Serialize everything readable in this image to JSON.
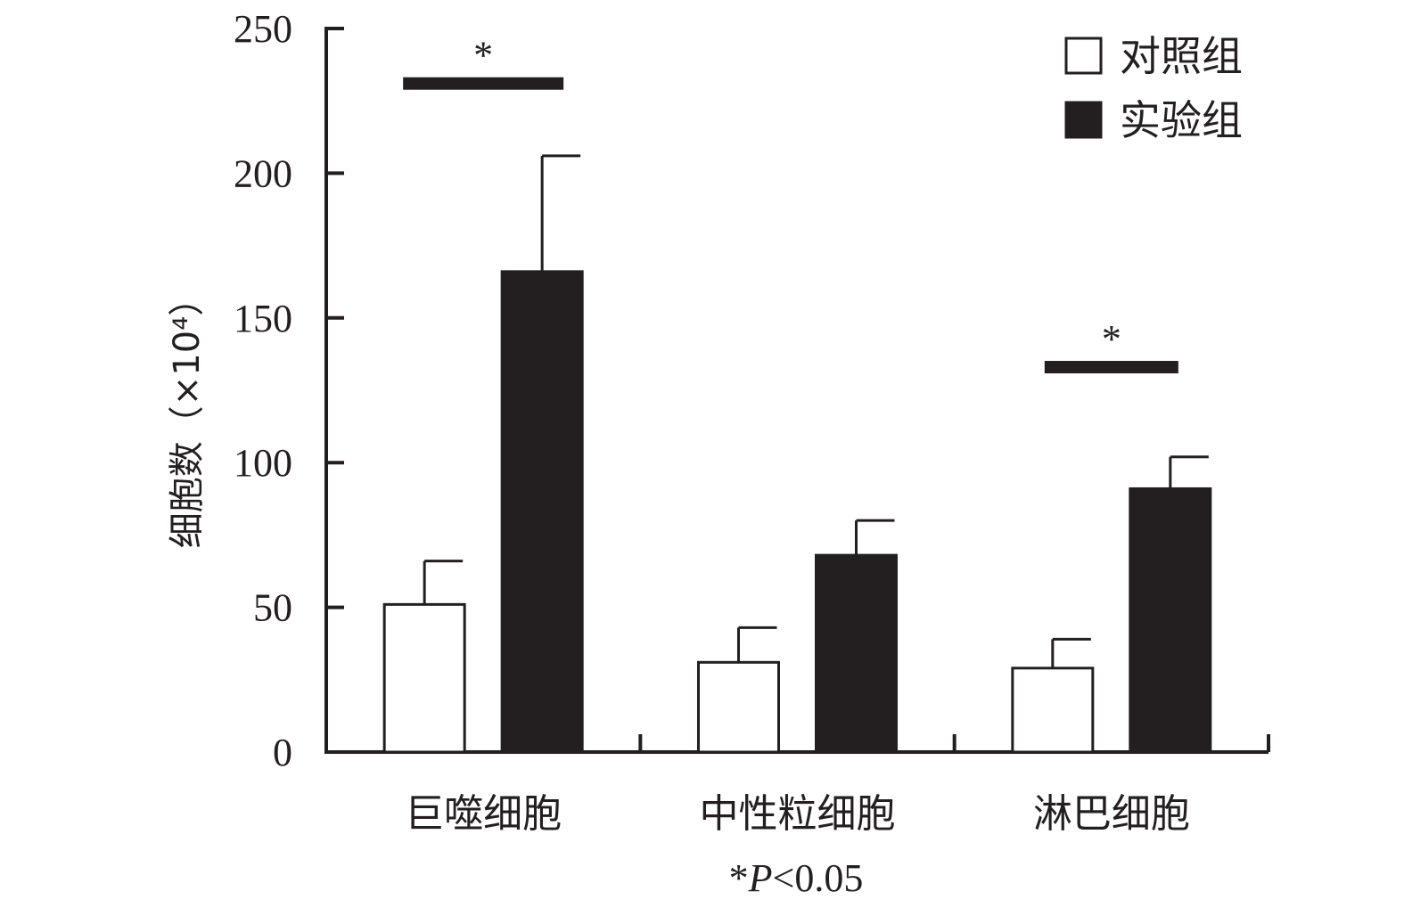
{
  "chart_data": {
    "type": "bar",
    "categories": [
      "巨噬细胞",
      "中性粒细胞",
      "淋巴细胞"
    ],
    "series": [
      {
        "name": "对照组",
        "values": [
          51,
          31,
          29
        ],
        "errors": [
          15,
          12,
          10
        ],
        "fill": "#ffffff",
        "stroke": "#231f20"
      },
      {
        "name": "实验组",
        "values": [
          166,
          68,
          91
        ],
        "errors": [
          40,
          12,
          11
        ],
        "fill": "#231f20",
        "stroke": "#231f20"
      }
    ],
    "ylabel": "细胞数（×10⁴）",
    "ylim": [
      0,
      250
    ],
    "yticks": [
      "0",
      "50",
      "100",
      "150",
      "200",
      "250"
    ],
    "legend_position": "top-right",
    "significance": [
      {
        "category": "巨噬细胞",
        "mark": "*",
        "level": 231
      },
      {
        "category": "淋巴细胞",
        "mark": "*",
        "level": 133
      }
    ],
    "note": {
      "star": "*",
      "p": "P",
      "rest": "<0.05"
    }
  }
}
